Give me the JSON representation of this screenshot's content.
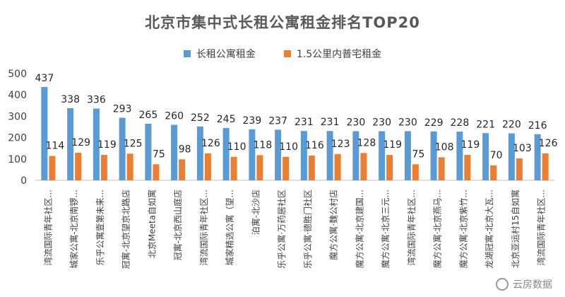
{
  "chart_data": {
    "type": "bar",
    "title": "北京市集中式长租公寓租金排名TOP20",
    "legend_position": "top",
    "grid": false,
    "ylim": [
      0,
      500
    ],
    "yticks": [
      0,
      100,
      200,
      300,
      400,
      500
    ],
    "categories": [
      "湾流国际青年社区...",
      "城家公寓-北京南锣...",
      "乐乎公寓壹第未来...",
      "冠寓-北京望京北路店",
      "北京Meeta自如寓",
      "冠寓-北京西山庭店",
      "湾流国际青年社区...",
      "城家精选公寓（望...",
      "泊寓-北沙店",
      "乐乎公寓·万药居社区",
      "乐乎公寓·德胜门社区",
      "魔方公寓·魏公村店",
      "魔方公寓·北京建国...",
      "魔方公寓·北京三元...",
      "湾流国际青年社区...",
      "魔方公寓·北京燕马...",
      "魔方公寓·北京紫竹...",
      "龙湖冠寓-北京大瓦...",
      "北京亚运村15自如寓",
      "湾流国际青年社区..."
    ],
    "series": [
      {
        "name": "长租公寓租金",
        "color": "#5B9BD5",
        "values": [
          437,
          338,
          336,
          293,
          265,
          260,
          252,
          245,
          239,
          237,
          231,
          231,
          230,
          230,
          230,
          229,
          228,
          221,
          220,
          216
        ]
      },
      {
        "name": "1.5公里内普宅租金",
        "color": "#ED7D31",
        "values": [
          114,
          129,
          119,
          125,
          75,
          98,
          126,
          110,
          118,
          110,
          116,
          123,
          128,
          119,
          75,
          108,
          119,
          70,
          103,
          126
        ]
      }
    ]
  },
  "watermark": {
    "text": "云房数据",
    "icon": "wechat-icon"
  }
}
